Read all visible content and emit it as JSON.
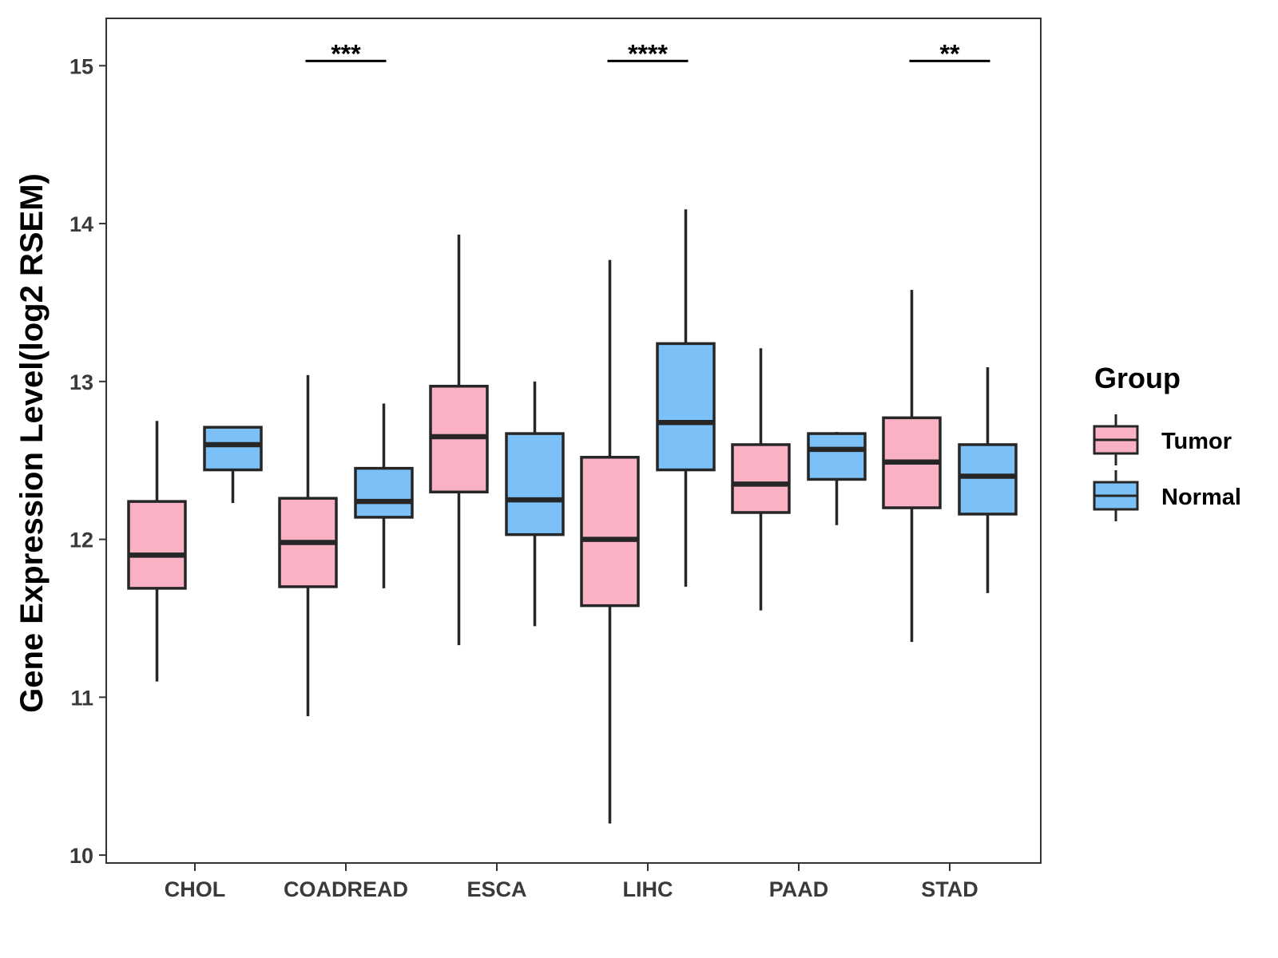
{
  "chart_data": {
    "type": "boxplot",
    "ylabel": "Gene Expression Level(log2 RSEM)",
    "xlabel": "",
    "ylim": [
      9.95,
      15.3
    ],
    "yticks": [
      10,
      11,
      12,
      13,
      14,
      15
    ],
    "categories": [
      "CHOL",
      "COADREAD",
      "ESCA",
      "LIHC",
      "PAAD",
      "STAD"
    ],
    "grid": false,
    "legend": {
      "title": "Group",
      "position": "right"
    },
    "series": [
      {
        "name": "Tumor",
        "color": "#F9B1C3",
        "boxes": [
          {
            "min": 11.1,
            "q1": 11.69,
            "median": 11.9,
            "q3": 12.24,
            "max": 12.75
          },
          {
            "min": 10.88,
            "q1": 11.7,
            "median": 11.98,
            "q3": 12.26,
            "max": 13.04
          },
          {
            "min": 11.33,
            "q1": 12.3,
            "median": 12.65,
            "q3": 12.97,
            "max": 13.93
          },
          {
            "min": 10.2,
            "q1": 11.58,
            "median": 12.0,
            "q3": 12.52,
            "max": 13.77
          },
          {
            "min": 11.55,
            "q1": 12.17,
            "median": 12.35,
            "q3": 12.6,
            "max": 13.21
          },
          {
            "min": 11.35,
            "q1": 12.2,
            "median": 12.49,
            "q3": 12.77,
            "max": 13.58
          }
        ]
      },
      {
        "name": "Normal",
        "color": "#7BC0F7",
        "boxes": [
          {
            "min": 12.23,
            "q1": 12.44,
            "median": 12.6,
            "q3": 12.71,
            "max": 12.71
          },
          {
            "min": 11.69,
            "q1": 12.14,
            "median": 12.24,
            "q3": 12.45,
            "max": 12.86
          },
          {
            "min": 11.45,
            "q1": 12.03,
            "median": 12.25,
            "q3": 12.67,
            "max": 13.0
          },
          {
            "min": 11.7,
            "q1": 12.44,
            "median": 12.74,
            "q3": 13.24,
            "max": 14.09
          },
          {
            "min": 12.09,
            "q1": 12.38,
            "median": 12.57,
            "q3": 12.67,
            "max": 12.68
          },
          {
            "min": 11.66,
            "q1": 12.16,
            "median": 12.4,
            "q3": 12.6,
            "max": 13.09
          }
        ]
      }
    ],
    "significance": [
      {
        "category": "COADREAD",
        "label": "***",
        "y": 15.03
      },
      {
        "category": "LIHC",
        "label": "****",
        "y": 15.03
      },
      {
        "category": "STAD",
        "label": "**",
        "y": 15.03
      }
    ]
  }
}
